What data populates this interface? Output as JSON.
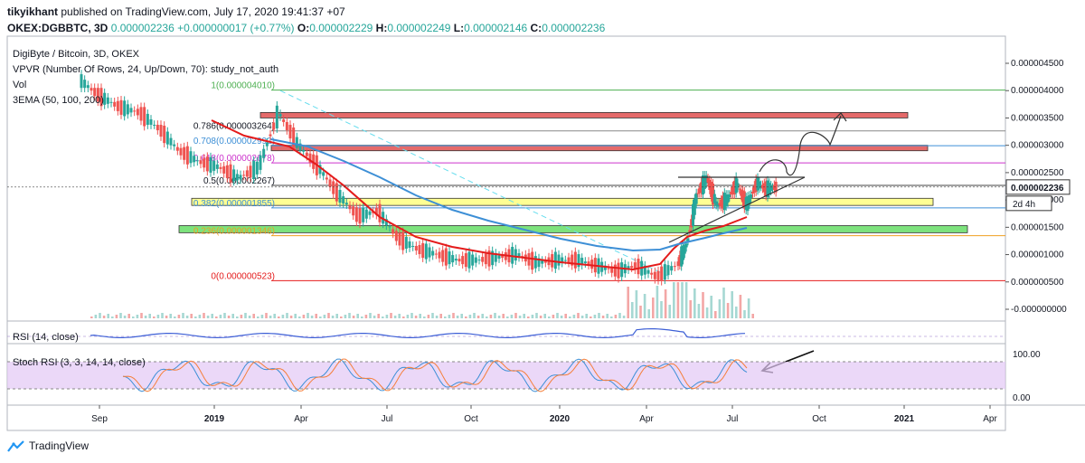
{
  "header": {
    "author": "tikyikhant",
    "published_text": " published on TradingView.com, July 17, 2020 19:41:37 +07",
    "symbol": "OKEX:DGBBTC, 3D",
    "last": "0.000002236",
    "change": "+0.000000017 (+0.77%)",
    "o_label": "O:",
    "o": "0.000002229",
    "h_label": "H:",
    "h": "0.000002249",
    "l_label": "L:",
    "l": "0.000002146",
    "c_label": "C:",
    "c": "0.000002236"
  },
  "legend": {
    "title": "DigiByte / Bitcoin, 3D, OKEX",
    "vpvr": "VPVR (Number Of Rows, 24, Up/Down, 70): study_not_auth",
    "vol": "Vol",
    "ema": "3EMA (50, 100, 200)"
  },
  "rsi_label": "RSI (14, close)",
  "stoch_label": "Stoch RSI (3, 3, 14, 14, close)",
  "footer": {
    "brand": "TradingView"
  },
  "colors": {
    "up": "#26a69a",
    "down": "#ef5350",
    "ema50": "#e41b1b",
    "ema100": "#3d8fd6",
    "fib_green": "#4caf50",
    "fib_magenta": "#cc33cc",
    "fib_orange": "#f0a020",
    "resistance_zone": "#e05050",
    "support_yellow": "#ffff80",
    "support_green": "#66dd66",
    "stoch_bg": "#e2c7f5"
  },
  "chart_data": {
    "type": "candlestick",
    "y_axis_labels": [
      "0.000004500",
      "0.000004000",
      "0.000003500",
      "0.000003000",
      "0.000002500",
      "0.000002000",
      "0.000001500",
      "0.000001000",
      "0.000000500",
      "-0.000000000"
    ],
    "current_price": "0.000002236",
    "countdown": "2d 4h",
    "x_axis_labels": [
      "Sep",
      "2019",
      "Apr",
      "Jul",
      "Oct",
      "2020",
      "Apr",
      "Jul",
      "Oct",
      "2021",
      "Apr"
    ],
    "fib_levels": [
      {
        "ratio": "1",
        "value": "0.000004010",
        "label": "1(0.000004010)"
      },
      {
        "ratio": "0.786",
        "value": "0.000003264",
        "label": "0.786(0.000003264)"
      },
      {
        "ratio": "0.708",
        "value": "0.000002992",
        "label": "0.708(0.000002992)"
      },
      {
        "ratio": "0.618",
        "value": "0.000002678",
        "label": "0.618(0.000002678)"
      },
      {
        "ratio": "0.5",
        "value": "0.000002267",
        "label": "0.5(0.000002267)"
      },
      {
        "ratio": "0.382",
        "value": "0.000001855",
        "label": "0.382(0.000001855)"
      },
      {
        "ratio": "0.236",
        "value": "0.000001346",
        "label": "0.236(0.000001346)"
      },
      {
        "ratio": "0",
        "value": "0.000000523",
        "label": "0(0.000000523)"
      }
    ],
    "zones": [
      {
        "name": "resistance",
        "from": 3.5e-06,
        "to": 3.6e-06
      },
      {
        "name": "upper-band",
        "from": 2.9e-06,
        "to": 3e-06
      },
      {
        "name": "yellow-support",
        "from": 1.9e-06,
        "to": 2.03e-06
      },
      {
        "name": "green-support",
        "from": 1.4e-06,
        "to": 1.53e-06
      }
    ],
    "price_series": [
      {
        "t": 0.0,
        "p": 4.2e-06
      },
      {
        "t": 0.02,
        "p": 3.9e-06
      },
      {
        "t": 0.04,
        "p": 3.7e-06
      },
      {
        "t": 0.06,
        "p": 3.6e-06
      },
      {
        "t": 0.08,
        "p": 3.3e-06
      },
      {
        "t": 0.1,
        "p": 2.9e-06
      },
      {
        "t": 0.12,
        "p": 2.7e-06
      },
      {
        "t": 0.14,
        "p": 2.6e-06
      },
      {
        "t": 0.16,
        "p": 2.4e-06
      },
      {
        "t": 0.18,
        "p": 2.6e-06
      },
      {
        "t": 0.2,
        "p": 3.6e-06
      },
      {
        "t": 0.22,
        "p": 3e-06
      },
      {
        "t": 0.24,
        "p": 2.6e-06
      },
      {
        "t": 0.26,
        "p": 2.1e-06
      },
      {
        "t": 0.28,
        "p": 1.7e-06
      },
      {
        "t": 0.3,
        "p": 1.8e-06
      },
      {
        "t": 0.32,
        "p": 1.3e-06
      },
      {
        "t": 0.34,
        "p": 1.1e-06
      },
      {
        "t": 0.36,
        "p": 1e-06
      },
      {
        "t": 0.38,
        "p": 9e-07
      },
      {
        "t": 0.4,
        "p": 9e-07
      },
      {
        "t": 0.42,
        "p": 9.5e-07
      },
      {
        "t": 0.44,
        "p": 1e-06
      },
      {
        "t": 0.46,
        "p": 8.5e-07
      },
      {
        "t": 0.48,
        "p": 9e-07
      },
      {
        "t": 0.5,
        "p": 9e-07
      },
      {
        "t": 0.52,
        "p": 8e-07
      },
      {
        "t": 0.54,
        "p": 7e-07
      },
      {
        "t": 0.56,
        "p": 8e-07
      },
      {
        "t": 0.58,
        "p": 6e-07
      },
      {
        "t": 0.6,
        "p": 8e-07
      },
      {
        "t": 0.61,
        "p": 1.2e-06
      },
      {
        "t": 0.62,
        "p": 2.1e-06
      },
      {
        "t": 0.63,
        "p": 2.4e-06
      },
      {
        "t": 0.64,
        "p": 1.9e-06
      },
      {
        "t": 0.65,
        "p": 2e-06
      },
      {
        "t": 0.66,
        "p": 2.3e-06
      },
      {
        "t": 0.67,
        "p": 1.9e-06
      },
      {
        "t": 0.68,
        "p": 2.3e-06
      },
      {
        "t": 0.69,
        "p": 2.2e-06
      },
      {
        "t": 0.7,
        "p": 2.24e-06
      }
    ]
  }
}
